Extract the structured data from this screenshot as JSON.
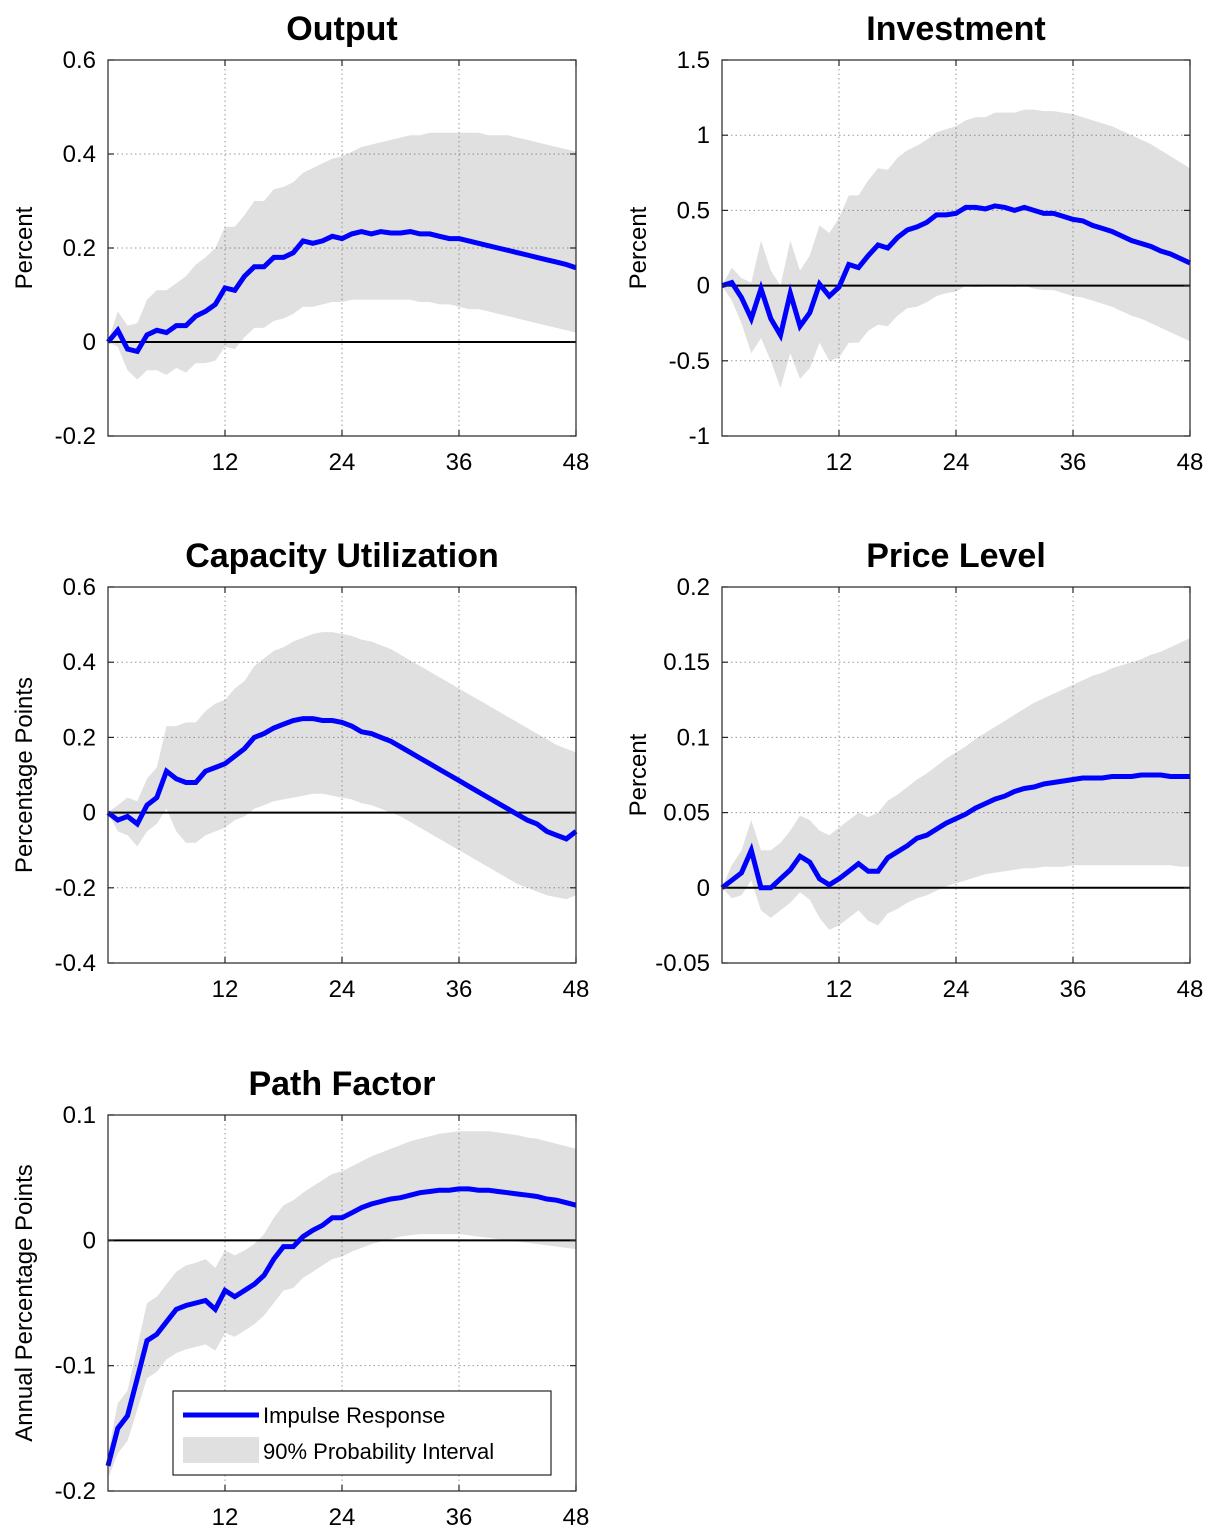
{
  "legend": {
    "line_label": "Impulse Response",
    "band_label": "90% Probability Interval",
    "line_color": "#0000ff",
    "band_color": "#e0e0e0"
  },
  "chart_data": [
    {
      "type": "line",
      "title": "Output",
      "ylabel": "Percent",
      "xlim": [
        0,
        48
      ],
      "xticks": [
        12,
        24,
        36,
        48
      ],
      "ylim": [
        -0.2,
        0.6
      ],
      "yticks": [
        -0.2,
        0,
        0.2,
        0.4,
        0.6
      ],
      "ytick_labels": [
        "-0.2",
        "0",
        "0.2",
        "0.4",
        "0.6"
      ],
      "grid": true,
      "x": [
        0,
        1,
        2,
        3,
        4,
        5,
        6,
        7,
        8,
        9,
        10,
        11,
        12,
        13,
        14,
        15,
        16,
        17,
        18,
        19,
        20,
        21,
        22,
        23,
        24,
        25,
        26,
        27,
        28,
        29,
        30,
        31,
        32,
        33,
        34,
        35,
        36,
        37,
        38,
        39,
        40,
        41,
        42,
        43,
        44,
        45,
        46,
        47,
        48
      ],
      "response": [
        0,
        0.025,
        -0.015,
        -0.02,
        0.015,
        0.025,
        0.02,
        0.035,
        0.035,
        0.055,
        0.065,
        0.08,
        0.115,
        0.11,
        0.14,
        0.16,
        0.16,
        0.18,
        0.18,
        0.19,
        0.215,
        0.21,
        0.215,
        0.225,
        0.22,
        0.23,
        0.235,
        0.23,
        0.235,
        0.232,
        0.232,
        0.235,
        0.23,
        0.23,
        0.225,
        0.22,
        0.22,
        0.215,
        0.21,
        0.205,
        0.2,
        0.195,
        0.19,
        0.185,
        0.18,
        0.175,
        0.17,
        0.165,
        0.158
      ],
      "lower": [
        0,
        -0.01,
        -0.06,
        -0.08,
        -0.06,
        -0.06,
        -0.07,
        -0.055,
        -0.065,
        -0.045,
        -0.045,
        -0.04,
        -0.01,
        -0.015,
        0.01,
        0.03,
        0.03,
        0.045,
        0.05,
        0.06,
        0.075,
        0.075,
        0.08,
        0.085,
        0.085,
        0.09,
        0.09,
        0.09,
        0.09,
        0.09,
        0.09,
        0.09,
        0.085,
        0.085,
        0.08,
        0.08,
        0.075,
        0.07,
        0.07,
        0.065,
        0.06,
        0.055,
        0.05,
        0.045,
        0.04,
        0.035,
        0.03,
        0.025,
        0.02
      ],
      "upper": [
        0,
        0.065,
        0.035,
        0.04,
        0.09,
        0.11,
        0.11,
        0.125,
        0.14,
        0.165,
        0.18,
        0.2,
        0.245,
        0.245,
        0.27,
        0.3,
        0.3,
        0.325,
        0.33,
        0.34,
        0.36,
        0.37,
        0.38,
        0.39,
        0.395,
        0.405,
        0.415,
        0.42,
        0.425,
        0.43,
        0.435,
        0.44,
        0.44,
        0.445,
        0.445,
        0.445,
        0.445,
        0.445,
        0.445,
        0.44,
        0.44,
        0.44,
        0.435,
        0.43,
        0.425,
        0.42,
        0.415,
        0.41,
        0.405
      ]
    },
    {
      "type": "line",
      "title": "Investment",
      "ylabel": "Percent",
      "xlim": [
        0,
        48
      ],
      "xticks": [
        12,
        24,
        36,
        48
      ],
      "ylim": [
        -1,
        1.5
      ],
      "yticks": [
        -1,
        -0.5,
        0,
        0.5,
        1,
        1.5
      ],
      "ytick_labels": [
        "-1",
        "-0.5",
        "0",
        "0.5",
        "1",
        "1.5"
      ],
      "grid": true,
      "x": [
        0,
        1,
        2,
        3,
        4,
        5,
        6,
        7,
        8,
        9,
        10,
        11,
        12,
        13,
        14,
        15,
        16,
        17,
        18,
        19,
        20,
        21,
        22,
        23,
        24,
        25,
        26,
        27,
        28,
        29,
        30,
        31,
        32,
        33,
        34,
        35,
        36,
        37,
        38,
        39,
        40,
        41,
        42,
        43,
        44,
        45,
        46,
        47,
        48
      ],
      "response": [
        0,
        0.02,
        -0.08,
        -0.22,
        -0.02,
        -0.22,
        -0.33,
        -0.05,
        -0.27,
        -0.18,
        0.01,
        -0.07,
        -0.01,
        0.14,
        0.12,
        0.2,
        0.27,
        0.25,
        0.32,
        0.37,
        0.39,
        0.42,
        0.47,
        0.47,
        0.48,
        0.52,
        0.52,
        0.51,
        0.53,
        0.52,
        0.5,
        0.52,
        0.5,
        0.48,
        0.48,
        0.46,
        0.44,
        0.43,
        0.4,
        0.38,
        0.36,
        0.33,
        0.3,
        0.28,
        0.26,
        0.23,
        0.21,
        0.18,
        0.15
      ],
      "lower": [
        0,
        -0.1,
        -0.25,
        -0.45,
        -0.35,
        -0.5,
        -0.68,
        -0.45,
        -0.62,
        -0.55,
        -0.38,
        -0.5,
        -0.48,
        -0.38,
        -0.38,
        -0.3,
        -0.26,
        -0.27,
        -0.2,
        -0.15,
        -0.14,
        -0.11,
        -0.07,
        -0.05,
        -0.04,
        0,
        -0.01,
        0,
        0,
        0,
        -0.01,
        0,
        -0.02,
        -0.03,
        -0.03,
        -0.05,
        -0.07,
        -0.08,
        -0.1,
        -0.12,
        -0.14,
        -0.17,
        -0.2,
        -0.22,
        -0.25,
        -0.28,
        -0.31,
        -0.34,
        -0.37
      ],
      "upper": [
        0,
        0.12,
        0.05,
        0.02,
        0.3,
        0.1,
        0,
        0.3,
        0.1,
        0.2,
        0.4,
        0.35,
        0.45,
        0.6,
        0.6,
        0.7,
        0.78,
        0.77,
        0.85,
        0.9,
        0.93,
        0.97,
        1.02,
        1.04,
        1.06,
        1.1,
        1.12,
        1.12,
        1.15,
        1.15,
        1.15,
        1.17,
        1.17,
        1.16,
        1.16,
        1.15,
        1.14,
        1.12,
        1.1,
        1.08,
        1.06,
        1.03,
        1,
        0.97,
        0.94,
        0.9,
        0.86,
        0.82,
        0.78
      ]
    },
    {
      "type": "line",
      "title": "Capacity Utilization",
      "ylabel": "Percentage Points",
      "xlim": [
        0,
        48
      ],
      "xticks": [
        12,
        24,
        36,
        48
      ],
      "ylim": [
        -0.4,
        0.6
      ],
      "yticks": [
        -0.4,
        -0.2,
        0,
        0.2,
        0.4,
        0.6
      ],
      "ytick_labels": [
        "-0.4",
        "-0.2",
        "0",
        "0.2",
        "0.4",
        "0.6"
      ],
      "grid": true,
      "x": [
        0,
        1,
        2,
        3,
        4,
        5,
        6,
        7,
        8,
        9,
        10,
        11,
        12,
        13,
        14,
        15,
        16,
        17,
        18,
        19,
        20,
        21,
        22,
        23,
        24,
        25,
        26,
        27,
        28,
        29,
        30,
        31,
        32,
        33,
        34,
        35,
        36,
        37,
        38,
        39,
        40,
        41,
        42,
        43,
        44,
        45,
        46,
        47,
        48
      ],
      "response": [
        0,
        -0.02,
        -0.01,
        -0.03,
        0.02,
        0.04,
        0.11,
        0.09,
        0.08,
        0.08,
        0.11,
        0.12,
        0.13,
        0.15,
        0.17,
        0.2,
        0.21,
        0.225,
        0.235,
        0.245,
        0.25,
        0.25,
        0.245,
        0.245,
        0.24,
        0.23,
        0.215,
        0.21,
        0.2,
        0.19,
        0.175,
        0.16,
        0.145,
        0.13,
        0.115,
        0.1,
        0.085,
        0.07,
        0.055,
        0.04,
        0.025,
        0.01,
        -0.005,
        -0.02,
        -0.03,
        -0.05,
        -0.06,
        -0.07,
        -0.05
      ],
      "lower": [
        0,
        -0.05,
        -0.06,
        -0.09,
        -0.05,
        -0.03,
        0.01,
        -0.05,
        -0.08,
        -0.08,
        -0.06,
        -0.05,
        -0.04,
        -0.02,
        -0.01,
        0.01,
        0.02,
        0.03,
        0.035,
        0.04,
        0.045,
        0.05,
        0.05,
        0.045,
        0.04,
        0.035,
        0.025,
        0.02,
        0.01,
        0,
        -0.01,
        -0.025,
        -0.04,
        -0.055,
        -0.07,
        -0.085,
        -0.1,
        -0.115,
        -0.13,
        -0.145,
        -0.16,
        -0.175,
        -0.19,
        -0.2,
        -0.21,
        -0.22,
        -0.225,
        -0.23,
        -0.22
      ],
      "upper": [
        0,
        0.02,
        0.04,
        0.03,
        0.09,
        0.12,
        0.23,
        0.23,
        0.24,
        0.24,
        0.27,
        0.29,
        0.3,
        0.33,
        0.35,
        0.39,
        0.41,
        0.43,
        0.44,
        0.455,
        0.465,
        0.475,
        0.48,
        0.48,
        0.475,
        0.47,
        0.46,
        0.455,
        0.445,
        0.435,
        0.42,
        0.405,
        0.39,
        0.375,
        0.36,
        0.345,
        0.33,
        0.315,
        0.3,
        0.285,
        0.27,
        0.255,
        0.24,
        0.225,
        0.21,
        0.195,
        0.18,
        0.17,
        0.16
      ]
    },
    {
      "type": "line",
      "title": "Price Level",
      "ylabel": "Percent",
      "xlim": [
        0,
        48
      ],
      "xticks": [
        12,
        24,
        36,
        48
      ],
      "ylim": [
        -0.05,
        0.2
      ],
      "yticks": [
        -0.05,
        0,
        0.05,
        0.1,
        0.15,
        0.2
      ],
      "ytick_labels": [
        "-0.05",
        "0",
        "0.05",
        "0.1",
        "0.15",
        "0.2"
      ],
      "grid": true,
      "x": [
        0,
        1,
        2,
        3,
        4,
        5,
        6,
        7,
        8,
        9,
        10,
        11,
        12,
        13,
        14,
        15,
        16,
        17,
        18,
        19,
        20,
        21,
        22,
        23,
        24,
        25,
        26,
        27,
        28,
        29,
        30,
        31,
        32,
        33,
        34,
        35,
        36,
        37,
        38,
        39,
        40,
        41,
        42,
        43,
        44,
        45,
        46,
        47,
        48
      ],
      "response": [
        0,
        0.005,
        0.01,
        0.025,
        0,
        0,
        0.006,
        0.012,
        0.021,
        0.017,
        0.006,
        0.002,
        0.006,
        0.011,
        0.016,
        0.011,
        0.011,
        0.02,
        0.024,
        0.028,
        0.033,
        0.035,
        0.039,
        0.043,
        0.046,
        0.049,
        0.053,
        0.056,
        0.059,
        0.061,
        0.064,
        0.066,
        0.067,
        0.069,
        0.07,
        0.071,
        0.072,
        0.073,
        0.073,
        0.073,
        0.074,
        0.074,
        0.074,
        0.075,
        0.075,
        0.075,
        0.074,
        0.074,
        0.074
      ],
      "lower": [
        0,
        -0.007,
        -0.005,
        0.005,
        -0.015,
        -0.02,
        -0.015,
        -0.01,
        -0.003,
        -0.008,
        -0.02,
        -0.028,
        -0.025,
        -0.02,
        -0.015,
        -0.022,
        -0.025,
        -0.017,
        -0.014,
        -0.01,
        -0.007,
        -0.005,
        -0.002,
        0.001,
        0.003,
        0.005,
        0.007,
        0.009,
        0.01,
        0.011,
        0.012,
        0.013,
        0.013,
        0.014,
        0.014,
        0.014,
        0.015,
        0.015,
        0.015,
        0.015,
        0.015,
        0.015,
        0.015,
        0.015,
        0.015,
        0.015,
        0.015,
        0.014,
        0.014
      ],
      "upper": [
        0,
        0.015,
        0.025,
        0.045,
        0.025,
        0.025,
        0.03,
        0.038,
        0.048,
        0.045,
        0.038,
        0.035,
        0.04,
        0.045,
        0.05,
        0.047,
        0.05,
        0.058,
        0.062,
        0.067,
        0.072,
        0.076,
        0.081,
        0.086,
        0.09,
        0.094,
        0.099,
        0.103,
        0.107,
        0.111,
        0.115,
        0.119,
        0.123,
        0.126,
        0.129,
        0.132,
        0.135,
        0.138,
        0.141,
        0.143,
        0.146,
        0.148,
        0.15,
        0.152,
        0.155,
        0.157,
        0.16,
        0.163,
        0.166
      ]
    },
    {
      "type": "line",
      "title": "Path Factor",
      "ylabel": "Annual Percentage Points",
      "xlim": [
        0,
        48
      ],
      "xticks": [
        12,
        24,
        36,
        48
      ],
      "ylim": [
        -0.2,
        0.1
      ],
      "yticks": [
        -0.2,
        -0.1,
        0,
        0.1
      ],
      "ytick_labels": [
        "-0.2",
        "-0.1",
        "0",
        "0.1"
      ],
      "grid": true,
      "legend_position": "bottom-left",
      "x": [
        0,
        1,
        2,
        3,
        4,
        5,
        6,
        7,
        8,
        9,
        10,
        11,
        12,
        13,
        14,
        15,
        16,
        17,
        18,
        19,
        20,
        21,
        22,
        23,
        24,
        25,
        26,
        27,
        28,
        29,
        30,
        31,
        32,
        33,
        34,
        35,
        36,
        37,
        38,
        39,
        40,
        41,
        42,
        43,
        44,
        45,
        46,
        47,
        48
      ],
      "response": [
        -0.18,
        -0.15,
        -0.14,
        -0.11,
        -0.08,
        -0.075,
        -0.065,
        -0.055,
        -0.052,
        -0.05,
        -0.048,
        -0.055,
        -0.04,
        -0.045,
        -0.04,
        -0.035,
        -0.028,
        -0.015,
        -0.005,
        -0.005,
        0.003,
        0.008,
        0.012,
        0.018,
        0.018,
        0.022,
        0.026,
        0.029,
        0.031,
        0.033,
        0.034,
        0.036,
        0.038,
        0.039,
        0.04,
        0.04,
        0.041,
        0.041,
        0.04,
        0.04,
        0.039,
        0.038,
        0.037,
        0.036,
        0.035,
        0.033,
        0.032,
        0.03,
        0.028
      ],
      "lower": [
        -0.19,
        -0.17,
        -0.16,
        -0.135,
        -0.11,
        -0.105,
        -0.095,
        -0.09,
        -0.087,
        -0.085,
        -0.083,
        -0.088,
        -0.074,
        -0.077,
        -0.072,
        -0.067,
        -0.06,
        -0.05,
        -0.04,
        -0.038,
        -0.03,
        -0.025,
        -0.02,
        -0.015,
        -0.013,
        -0.009,
        -0.006,
        -0.003,
        -0.001,
        0.001,
        0.003,
        0.004,
        0.005,
        0.005,
        0.005,
        0.005,
        0.005,
        0.004,
        0.003,
        0.002,
        0.001,
        0,
        -0.001,
        -0.002,
        -0.003,
        -0.004,
        -0.005,
        -0.006,
        -0.007
      ],
      "upper": [
        -0.17,
        -0.13,
        -0.12,
        -0.085,
        -0.05,
        -0.045,
        -0.035,
        -0.025,
        -0.02,
        -0.018,
        -0.015,
        -0.022,
        -0.008,
        -0.012,
        -0.008,
        -0.003,
        0.005,
        0.018,
        0.028,
        0.032,
        0.038,
        0.043,
        0.048,
        0.053,
        0.055,
        0.059,
        0.063,
        0.067,
        0.07,
        0.073,
        0.076,
        0.079,
        0.081,
        0.083,
        0.085,
        0.086,
        0.087,
        0.087,
        0.087,
        0.087,
        0.086,
        0.085,
        0.084,
        0.082,
        0.081,
        0.079,
        0.077,
        0.075,
        0.073
      ]
    }
  ]
}
